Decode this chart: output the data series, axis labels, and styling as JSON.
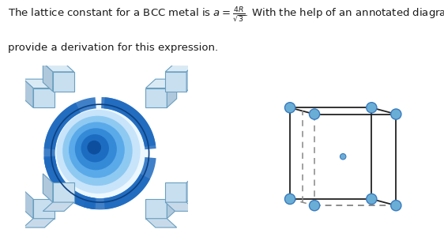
{
  "text_line1": "The lattice constant for a BCC metal is $a = \\frac{4R}{\\sqrt{3}}$. With the help of an annotated diagram,",
  "text_line2": "provide a derivation for this expression.",
  "text_fontsize": 9.5,
  "text_color": "#1a1a1a",
  "bg_color": "#ffffff",
  "atom_fill": "#6aaed6",
  "atom_edge": "#3a7bbf",
  "center_atom_fill": "#6aaed6",
  "center_atom_edge": "#3a7bbf",
  "solid_color": "#222222",
  "dashed_color": "#888888",
  "atom_r": 0.032,
  "center_r": 0.018,
  "cube_right": {
    "mx": 0.5,
    "my": 0.46,
    "hs": 0.25,
    "pdx": 0.15,
    "pdy": 0.28
  },
  "sphere_colors": [
    "#0d4f9e",
    "#1a6abf",
    "#2e85d4",
    "#4da3e8",
    "#7cc0f0",
    "#b8ddf8",
    "#e8f5ff"
  ],
  "sphere_alphas": [
    1.0,
    0.9,
    0.85,
    0.8,
    0.75,
    0.7,
    0.8
  ],
  "corner_cube_color": "#c8dff0",
  "corner_cube_edge": "#6a9fc0",
  "blue_wave_color": "#1a5fa8"
}
